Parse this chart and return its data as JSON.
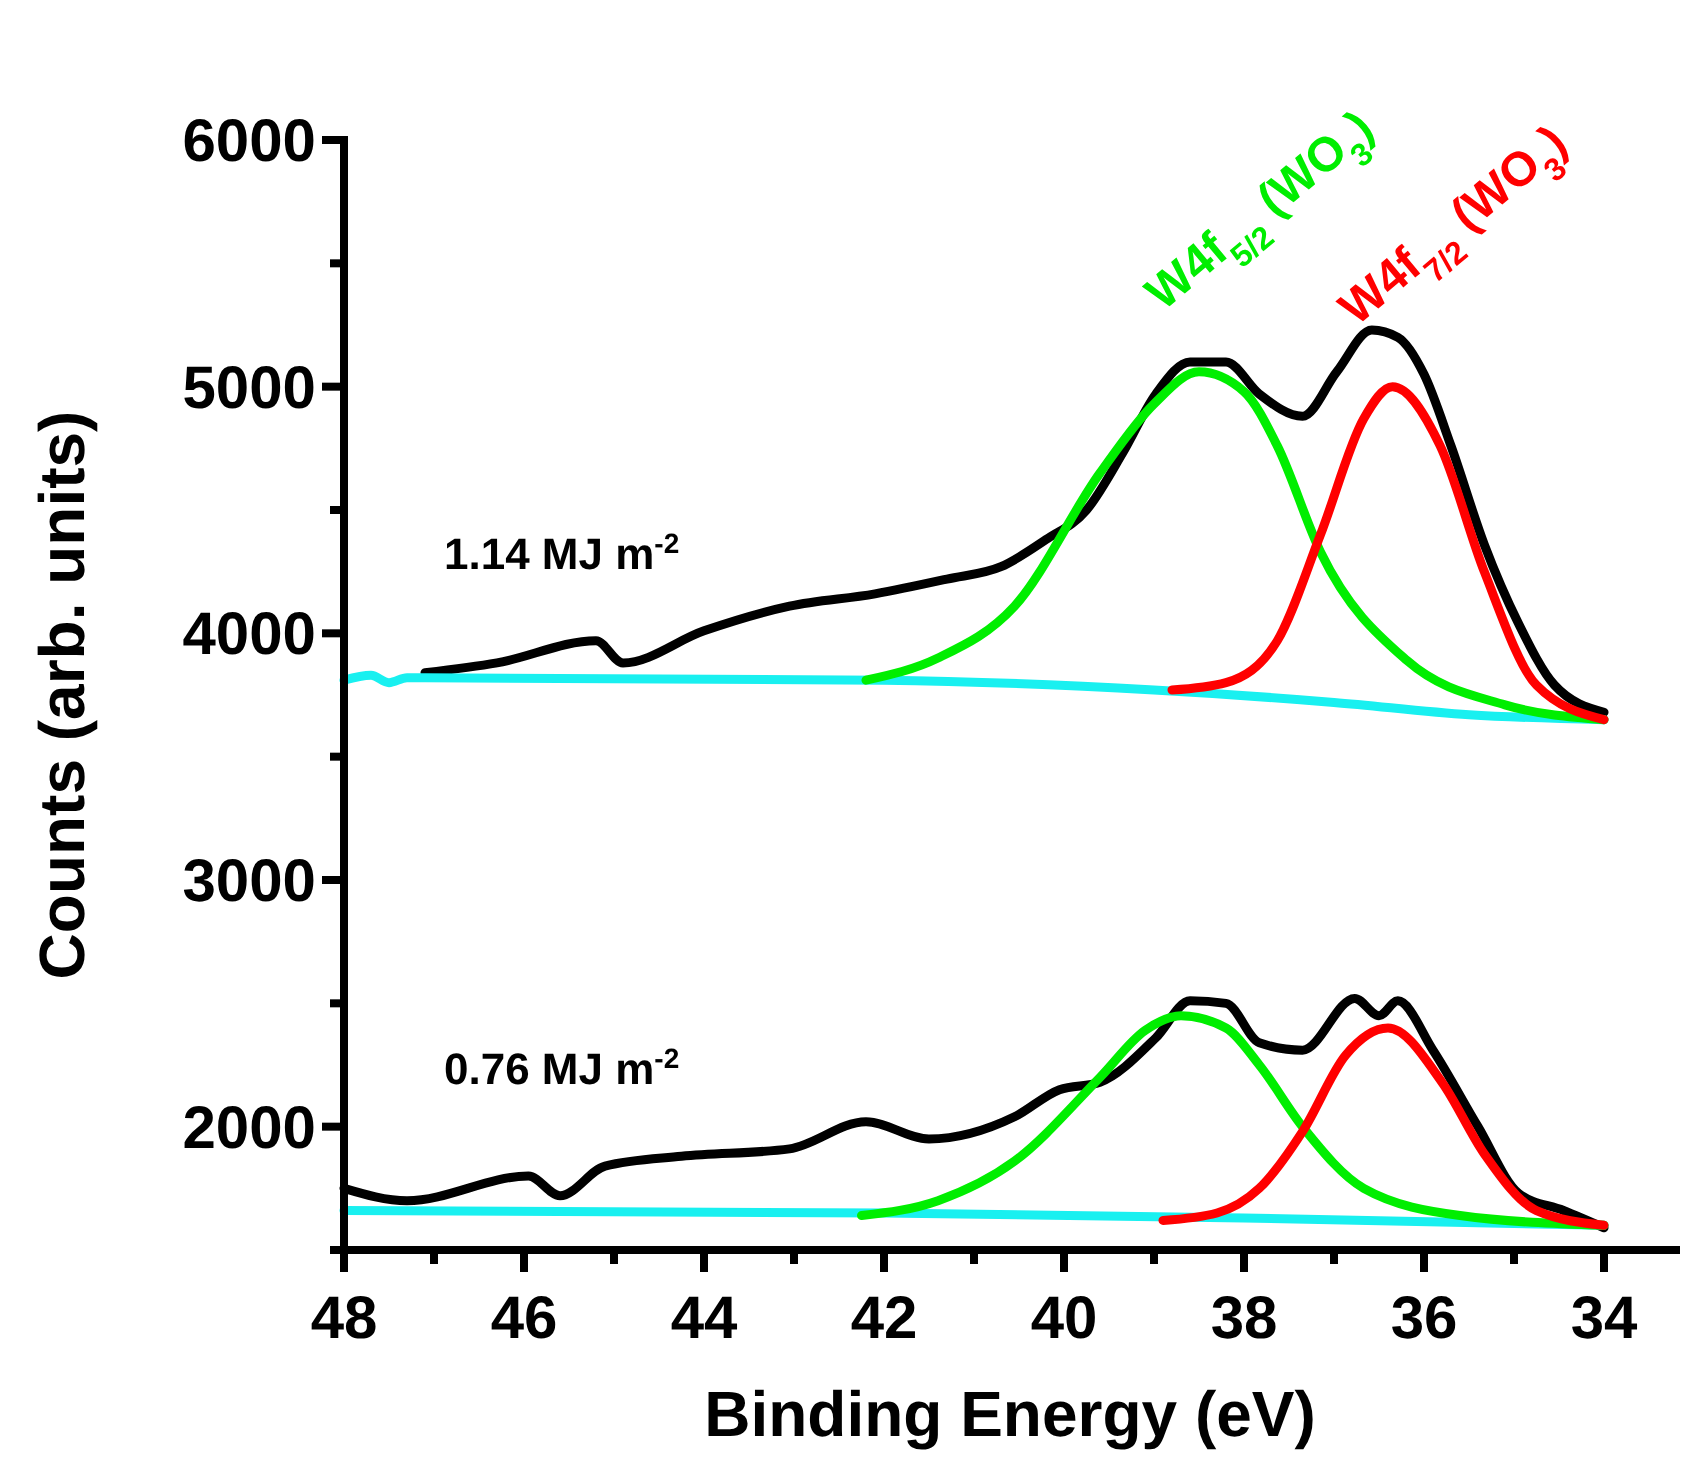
{
  "chart_data": {
    "type": "line",
    "xlabel": "Binding Energy (eV)",
    "ylabel": "Counts (arb. units)",
    "xlim": [
      48,
      33.2
    ],
    "ylim": [
      1500,
      6000
    ],
    "xticks": [
      48,
      {
        "value": 47,
        "label": null
      },
      46,
      {
        "value": 45,
        "label": null
      },
      44,
      {
        "value": 43,
        "label": null
      },
      42,
      {
        "value": 41,
        "label": null
      },
      40,
      {
        "value": 39,
        "label": null
      },
      38,
      {
        "value": 37,
        "label": null
      },
      36,
      {
        "value": 35,
        "label": null
      },
      34
    ],
    "yticks": [
      {
        "value": 1500,
        "label": null
      },
      2000,
      {
        "value": 2500,
        "label": null
      },
      3000,
      {
        "value": 3500,
        "label": null
      },
      4000,
      {
        "value": 4500,
        "label": null
      },
      5000,
      {
        "value": 5500,
        "label": null
      },
      6000
    ],
    "marker": "none",
    "series": [
      {
        "color": "#000000",
        "x": [
          47.1,
          46.3,
          45.2,
          44.9,
          44.0,
          43.05,
          42.1,
          41.3,
          40.7,
          40.2,
          39.75,
          39.35,
          38.98,
          38.6,
          38.2,
          37.83,
          37.35,
          36.97,
          36.58,
          36.29,
          36.0,
          35.7,
          35.33,
          34.95,
          34.55,
          34.0
        ],
        "values": [
          3840,
          3880,
          3970,
          3880,
          4010,
          4110,
          4160,
          4220,
          4270,
          4380,
          4500,
          4730,
          4970,
          5100,
          5100,
          4970,
          4880,
          5060,
          5230,
          5200,
          5050,
          4760,
          4360,
          4040,
          3790,
          3680
        ]
      },
      {
        "color": "#000000",
        "x": [
          48,
          47.3,
          45.95,
          45.6,
          45.1,
          44.25,
          43.05,
          42.2,
          41.5,
          40.55,
          40.05,
          39.6,
          38.98,
          38.6,
          38.2,
          37.83,
          37.35,
          36.77,
          36.5,
          36.29,
          35.9,
          35.4,
          34.95,
          34.45,
          34.0
        ],
        "values": [
          1750,
          1700,
          1800,
          1720,
          1840,
          1880,
          1910,
          2020,
          1950,
          2040,
          2150,
          2180,
          2360,
          2510,
          2500,
          2340,
          2310,
          2520,
          2450,
          2510,
          2310,
          2000,
          1730,
          1660,
          1590
        ]
      },
      {
        "color": "#19f0f0",
        "x": [
          48,
          47.7,
          47.5,
          47.3,
          47.1,
          42,
          39,
          37,
          35.5,
          34
        ],
        "values": [
          3810,
          3830,
          3800,
          3820,
          3820,
          3810,
          3770,
          3720,
          3670,
          3650
        ]
      },
      {
        "color": "#19f0f0",
        "x": [
          48,
          42,
          38,
          34
        ],
        "values": [
          1660,
          1650,
          1630,
          1600
        ]
      },
      {
        "name": "W4f$_{5/2}$ (WO$_{3}$)",
        "color": "#00ee00",
        "x": [
          42.2,
          41.4,
          40.55,
          39.6,
          39.0,
          38.5,
          38.0,
          37.63,
          37.15,
          36.19,
          35.1,
          34.0
        ],
        "values": [
          3810,
          3900,
          4110,
          4650,
          4930,
          5060,
          4980,
          4760,
          4330,
          3890,
          3710,
          3650
        ]
      },
      {
        "color": "#00ee00",
        "x": [
          42.25,
          41.4,
          40.55,
          39.6,
          39.1,
          38.7,
          38.2,
          37.83,
          37.35,
          36.67,
          35.6,
          34.0
        ],
        "values": [
          1640,
          1700,
          1860,
          2200,
          2390,
          2450,
          2400,
          2250,
          2000,
          1750,
          1640,
          1600
        ]
      },
      {
        "name": "W4f$_{7/2}$ (WO$_{3}$)",
        "color": "#ff0000",
        "x": [
          38.8,
          38.2,
          37.63,
          37.15,
          36.67,
          36.35,
          35.82,
          35.33,
          34.75,
          34.0
        ],
        "values": [
          3770,
          3800,
          3970,
          4400,
          4870,
          5000,
          4760,
          4250,
          3790,
          3650
        ]
      },
      {
        "color": "#ff0000",
        "x": [
          38.9,
          38.3,
          37.83,
          37.35,
          36.87,
          36.4,
          35.8,
          35.33,
          34.75,
          34.0
        ],
        "values": [
          1620,
          1650,
          1750,
          1980,
          2290,
          2400,
          2180,
          1890,
          1660,
          1600
        ]
      }
    ],
    "annotations": [
      "1.14 MJ m$^{-2}$",
      "0.76 MJ m$^{-2}$"
    ]
  }
}
